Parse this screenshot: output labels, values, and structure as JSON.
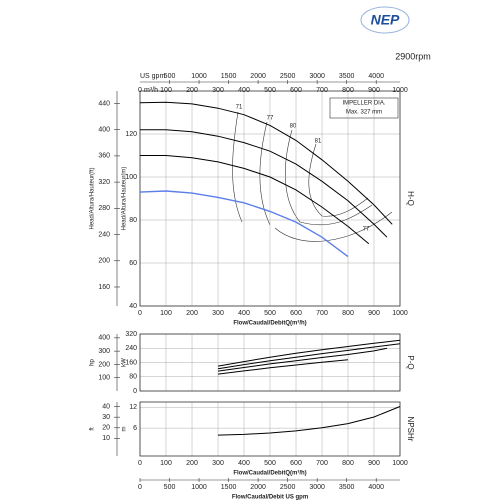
{
  "logo": "NEP",
  "speed": "2900rpm",
  "chart_data": [
    {
      "type": "line",
      "side_label": "H-Q",
      "xlabel": "Flow/Caudal/DebitQ(m³/h)",
      "xunit": "m³/h",
      "xlim": [
        0,
        1000
      ],
      "xticks": [
        0,
        100,
        200,
        300,
        400,
        500,
        600,
        700,
        800,
        900,
        1000
      ],
      "xtick_labels": true,
      "x2label": "US gpm",
      "x2lim": [
        0,
        4403
      ],
      "x2ticks": [
        500,
        1000,
        1500,
        2000,
        2500,
        3000,
        3500,
        4000
      ],
      "ylabel": "Head/Altura/Hauteur(m)",
      "ylim": [
        40,
        140
      ],
      "yticks": [
        40,
        60,
        80,
        100,
        120
      ],
      "y2label": "Head/Altura/Hauteur(ft)",
      "y2lim": [
        131,
        459
      ],
      "y2ticks": [
        160,
        200,
        240,
        280,
        320,
        360,
        400,
        440
      ],
      "grid": true,
      "impeller_box": [
        "IMPELLER DIA.",
        "Max.  327  mm"
      ],
      "efficiency_labels": [
        "71",
        "77",
        "80",
        "81",
        "77"
      ],
      "series": [
        {
          "color": "#000000",
          "x": [
            0,
            100,
            200,
            300,
            400,
            500,
            600,
            700,
            800,
            900,
            970
          ],
          "values": [
            134.5,
            134.8,
            134,
            132,
            129,
            124,
            117,
            108,
            98,
            87,
            78
          ]
        },
        {
          "color": "#000000",
          "x": [
            0,
            100,
            200,
            300,
            400,
            500,
            600,
            700,
            800,
            900,
            950
          ],
          "values": [
            122,
            122,
            121,
            119,
            116,
            112,
            106,
            98,
            89,
            78,
            72
          ]
        },
        {
          "color": "#000000",
          "x": [
            0,
            100,
            200,
            300,
            400,
            500,
            600,
            700,
            800,
            880
          ],
          "values": [
            110,
            110,
            109,
            107,
            104,
            100,
            94,
            86,
            77,
            69
          ]
        },
        {
          "color": "#5b7fe8",
          "x": [
            0,
            100,
            200,
            300,
            400,
            500,
            600,
            700,
            800
          ],
          "values": [
            93,
            93.5,
            92.5,
            90.5,
            88,
            84,
            79,
            72,
            63
          ]
        }
      ]
    },
    {
      "type": "line",
      "side_label": "P-Q",
      "xlim": [
        0,
        1000
      ],
      "xticks": [
        0,
        100,
        200,
        300,
        400,
        500,
        600,
        700,
        800,
        900,
        1000
      ],
      "xtick_labels": false,
      "ylabel": "kW",
      "ylim": [
        0,
        320
      ],
      "yticks": [
        0,
        80,
        160,
        240,
        320
      ],
      "y2label": "hp",
      "y2lim": [
        0,
        429
      ],
      "y2ticks": [
        100,
        200,
        300,
        400
      ],
      "grid": true,
      "series": [
        {
          "color": "#000000",
          "x": [
            300,
            400,
            500,
            600,
            700,
            800,
            900,
            1000
          ],
          "values": [
            140,
            165,
            190,
            212,
            232,
            250,
            268,
            285
          ]
        },
        {
          "color": "#000000",
          "x": [
            300,
            400,
            500,
            600,
            700,
            800,
            900,
            1000
          ],
          "values": [
            125,
            148,
            170,
            190,
            210,
            228,
            247,
            265
          ]
        },
        {
          "color": "#000000",
          "x": [
            300,
            400,
            500,
            600,
            700,
            800,
            900,
            950
          ],
          "values": [
            112,
            132,
            152,
            170,
            188,
            205,
            225,
            240
          ]
        },
        {
          "color": "#000000",
          "x": [
            300,
            400,
            500,
            600,
            700,
            800
          ],
          "values": [
            95,
            113,
            130,
            146,
            161,
            175
          ]
        }
      ]
    },
    {
      "type": "line",
      "side_label": "NPSHr",
      "xlabel": "Flow/Caudal/DebitQ(m³/h)",
      "xlim": [
        0,
        1000
      ],
      "xticks": [
        0,
        100,
        200,
        300,
        400,
        500,
        600,
        700,
        800,
        900,
        1000
      ],
      "xtick_labels": true,
      "x2label": "Flow/Caudal/Debit  US gpm",
      "x2lim": [
        0,
        4403
      ],
      "x2ticks": [
        0,
        500,
        1000,
        1500,
        2000,
        2500,
        3000,
        3500,
        4000
      ],
      "ylabel": "m",
      "ylim": [
        -2,
        13.5
      ],
      "yticks": [
        6,
        12
      ],
      "y2label": "ft",
      "y2lim": [
        -6.6,
        44.3
      ],
      "y2ticks": [
        10,
        20,
        30,
        40
      ],
      "grid": true,
      "series": [
        {
          "color": "#000000",
          "x": [
            300,
            400,
            500,
            600,
            700,
            800,
            900,
            1000
          ],
          "values": [
            4,
            4.2,
            4.6,
            5.2,
            6.1,
            7.3,
            9.2,
            12.2
          ]
        }
      ]
    }
  ]
}
